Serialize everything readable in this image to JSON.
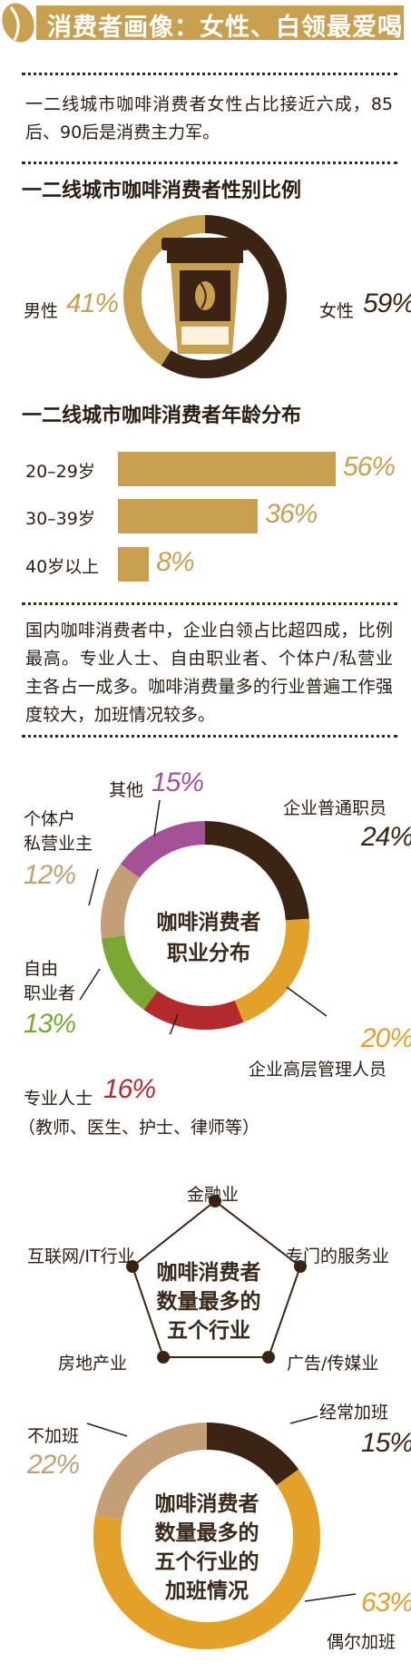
{
  "header": {
    "title": "消费者画像：女性、白领最爱喝"
  },
  "intro": {
    "text": "一二线城市咖啡消费者女性占比接近六成，85后、90后是消费主力军。"
  },
  "gender": {
    "title": "一二线城市咖啡消费者性别比例",
    "male_label": "男性",
    "male_pct": "41%",
    "female_label": "女性",
    "female_pct": "59%"
  },
  "age": {
    "title": "一二线城市咖啡消费者年龄分布",
    "rows": [
      {
        "label": "20–29岁",
        "pct": "56%"
      },
      {
        "label": "30–39岁",
        "pct": "36%"
      },
      {
        "label": "40岁以上",
        "pct": "8%"
      }
    ]
  },
  "occupation_text": {
    "text": "国内咖啡消费者中，企业白领占比超四成，比例最高。专业人士、自由职业者、个体户/私营业主各占一成多。咖啡消费量多的行业普遍工作强度较大，加班情况较多。"
  },
  "occupation": {
    "center_line1": "咖啡消费者",
    "center_line2": "职业分布",
    "employee_label": "企业普通职员",
    "employee_pct": "24%",
    "manager_label": "企业高层管理人员",
    "manager_pct": "20%",
    "professional_label": "专业人士",
    "professional_pct": "16%",
    "professional_note": "（教师、医生、护士、律师等）",
    "freelancer_label1": "自由",
    "freelancer_label2": "职业者",
    "freelancer_pct": "13%",
    "owner_label1": "个体户",
    "owner_label2": "私营业主",
    "owner_pct": "12%",
    "other_label": "其他",
    "other_pct": "15%"
  },
  "industries": {
    "center_line1": "咖啡消费者",
    "center_line2": "数量最多的",
    "center_line3": "五个行业",
    "items": [
      "金融业",
      "专门的服务业",
      "广告/传媒业",
      "房地产业",
      "互联网/IT行业"
    ]
  },
  "overtime": {
    "center_line1": "咖啡消费者",
    "center_line2": "数量最多的",
    "center_line3": "五个行业的",
    "center_line4": "加班情况",
    "often_label": "经常加班",
    "often_pct": "15%",
    "none_label": "不加班",
    "none_pct": "22%",
    "sometimes_label": "偶尔加班",
    "sometimes_pct": "63%"
  },
  "colors": {
    "dark_brown": "#3b2414",
    "gold": "#c9a04f",
    "orange": "#e3a12a",
    "red": "#b42a2c",
    "green": "#7aa833",
    "tan": "#c39e77",
    "purple": "#a45198"
  },
  "chart_data": [
    {
      "type": "pie",
      "title": "一二线城市咖啡消费者性别比例",
      "categories": [
        "男性",
        "女性"
      ],
      "values": [
        41,
        59
      ]
    },
    {
      "type": "bar",
      "title": "一二线城市咖啡消费者年龄分布",
      "categories": [
        "20–29岁",
        "30–39岁",
        "40岁以上"
      ],
      "values": [
        56,
        36,
        8
      ]
    },
    {
      "type": "pie",
      "title": "咖啡消费者职业分布",
      "categories": [
        "企业普通职员",
        "企业高层管理人员",
        "专业人士",
        "自由职业者",
        "个体户私营业主",
        "其他"
      ],
      "values": [
        24,
        20,
        16,
        13,
        12,
        15
      ]
    },
    {
      "type": "pie",
      "title": "咖啡消费者数量最多的五个行业的加班情况",
      "categories": [
        "经常加班",
        "偶尔加班",
        "不加班"
      ],
      "values": [
        15,
        63,
        22
      ]
    }
  ]
}
